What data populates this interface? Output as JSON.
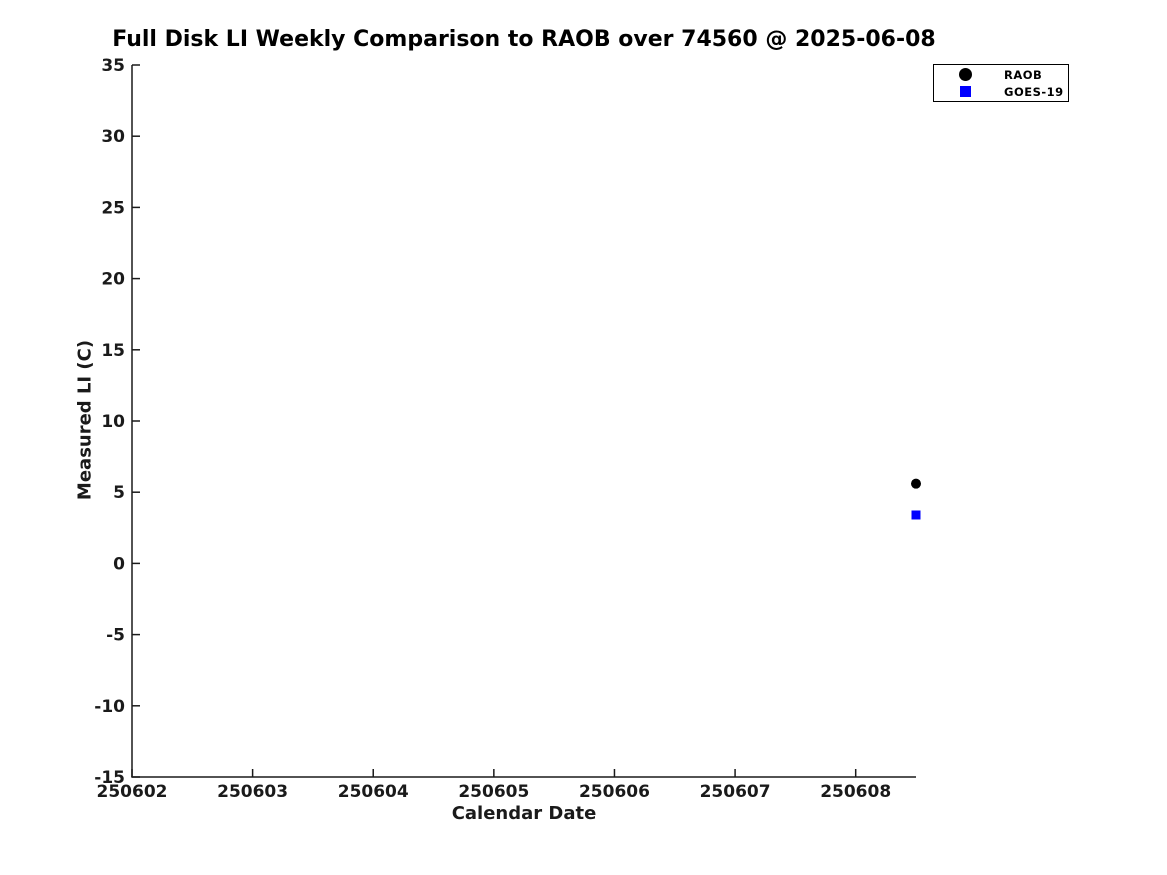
{
  "figure": {
    "background_color": "#ffffff",
    "text_color": "#1a1a1a"
  },
  "chart_data": {
    "type": "scatter",
    "title": "Full Disk LI Weekly Comparison to RAOB over 74560 @ 2025-06-08",
    "xlabel": "Calendar Date",
    "ylabel": "Measured LI (C)",
    "xlim": [
      250602,
      250608.5
    ],
    "ylim": [
      -15,
      35
    ],
    "xticks": [
      250602,
      250603,
      250604,
      250605,
      250606,
      250607,
      250608
    ],
    "yticks": [
      -15,
      -10,
      -5,
      0,
      5,
      10,
      15,
      20,
      25,
      30,
      35
    ],
    "grid": false,
    "legend_position": "top-right",
    "series": [
      {
        "name": "RAOB",
        "marker": "circle",
        "color": "#000000",
        "size": 10,
        "points": [
          {
            "x": 250608.5,
            "y": 5.6
          }
        ]
      },
      {
        "name": "GOES-19",
        "marker": "square",
        "color": "#0000ff",
        "size": 9,
        "points": [
          {
            "x": 250608.5,
            "y": 3.4
          }
        ]
      }
    ]
  }
}
